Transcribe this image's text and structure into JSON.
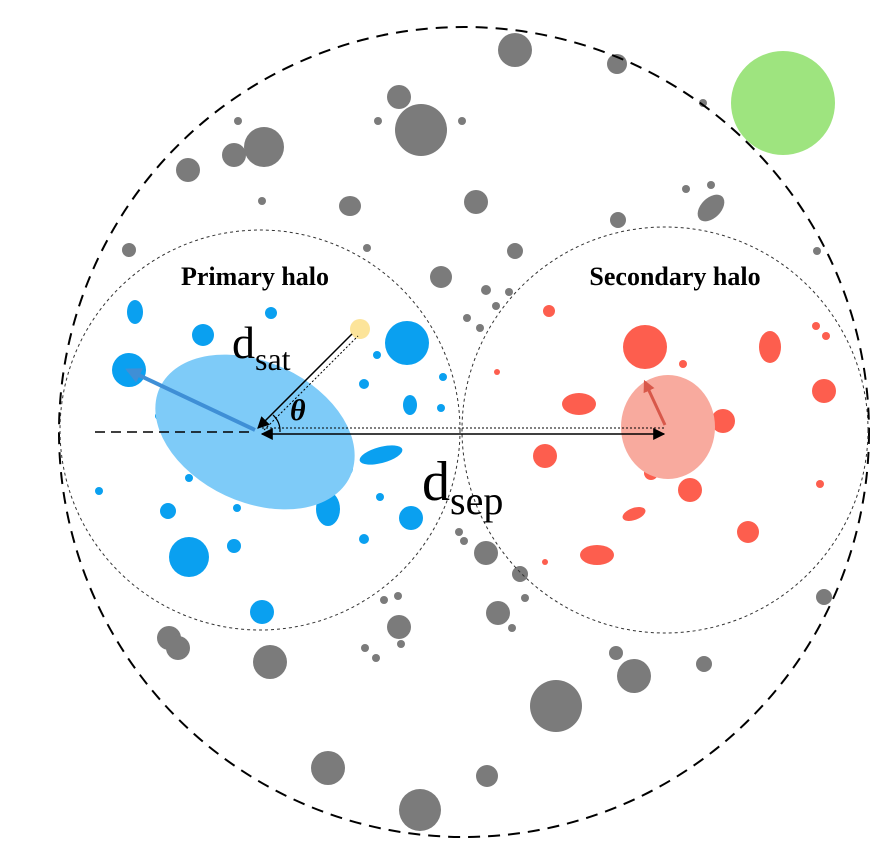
{
  "labels": {
    "primary_halo": "Primary halo",
    "secondary_halo": "Secondary halo",
    "d_sat": {
      "main": "d",
      "sub": "sat"
    },
    "theta": "θ",
    "d_sep": {
      "main": "d",
      "sub": "sep"
    }
  }
}
